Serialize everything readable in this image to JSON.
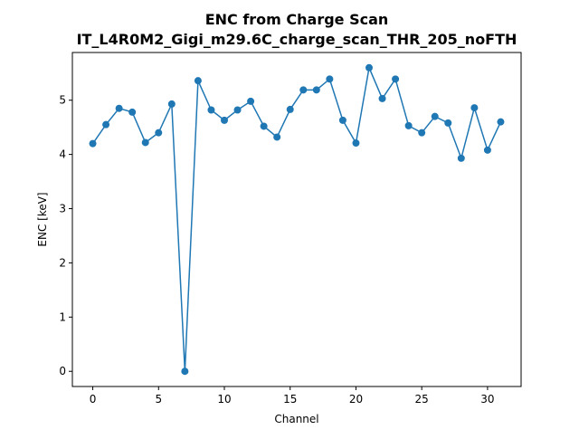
{
  "chart_data": {
    "type": "line",
    "title": "ENC from Charge Scan",
    "subtitle": "IT_L4R0M2_Gigi_m29.6C_charge_scan_THR_205_noFTH",
    "xlabel": "Channel",
    "ylabel": "ENC [keV]",
    "xlim": [
      -1.55,
      32.55
    ],
    "ylim": [
      -0.28,
      5.88
    ],
    "xticks": [
      0,
      5,
      10,
      15,
      20,
      25,
      30
    ],
    "yticks": [
      0,
      1,
      2,
      3,
      4,
      5
    ],
    "grid": false,
    "legend": "none",
    "series": [
      {
        "color": "#1f77b4",
        "marker": "circle",
        "x": [
          0,
          1,
          2,
          3,
          4,
          5,
          6,
          7,
          8,
          9,
          10,
          11,
          12,
          13,
          14,
          15,
          16,
          17,
          18,
          19,
          20,
          21,
          22,
          23,
          24,
          25,
          26,
          27,
          28,
          29,
          30,
          31
        ],
        "y": [
          4.2,
          4.55,
          4.85,
          4.78,
          4.22,
          4.4,
          4.93,
          0.0,
          5.36,
          4.82,
          4.63,
          4.82,
          4.98,
          4.52,
          4.32,
          4.83,
          5.19,
          5.19,
          5.39,
          4.63,
          4.21,
          5.6,
          5.03,
          5.39,
          4.53,
          4.4,
          4.7,
          4.58,
          3.93,
          4.86,
          4.08,
          4.6
        ]
      }
    ]
  }
}
